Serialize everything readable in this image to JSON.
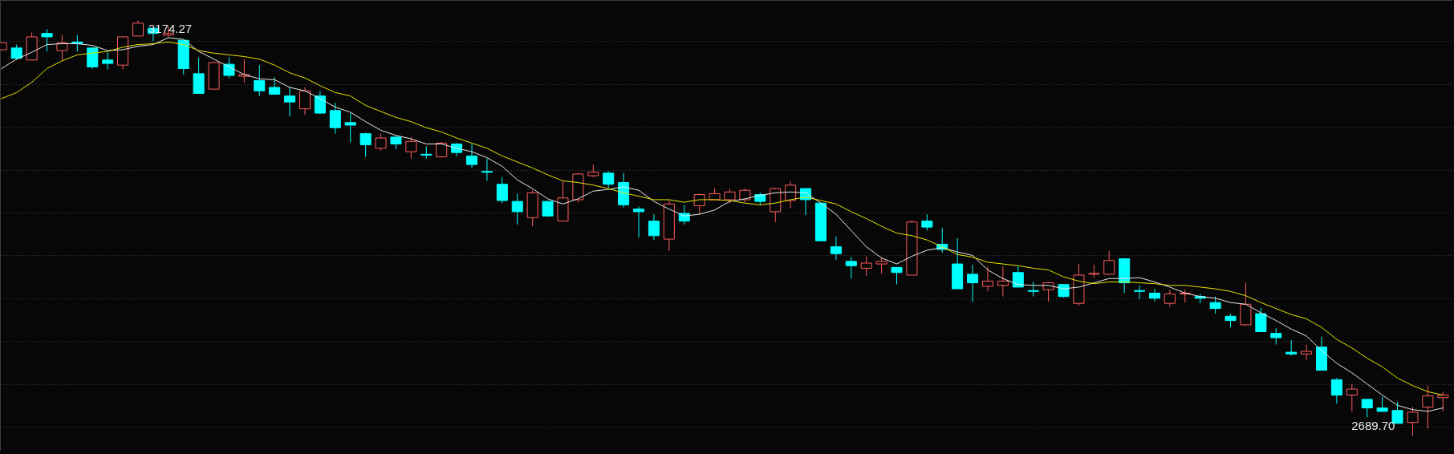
{
  "chart_data": {
    "type": "candlestick",
    "categories": [
      null,
      null,
      null,
      null,
      null,
      null,
      null,
      null,
      null,
      null,
      null,
      null,
      null,
      null,
      null,
      null,
      null,
      null,
      null,
      null,
      null,
      null,
      null,
      null,
      null,
      null,
      null,
      null,
      null,
      null,
      null,
      null,
      null,
      null,
      null,
      null,
      null,
      null,
      null,
      null,
      null,
      null,
      null,
      null,
      null,
      null,
      null,
      null,
      null,
      null,
      null,
      null,
      null,
      null,
      null,
      null,
      null,
      null,
      null,
      null,
      null,
      null,
      null,
      null,
      null,
      null,
      null,
      null,
      null,
      null,
      null,
      null,
      null,
      null,
      null,
      null,
      null,
      null,
      null,
      null,
      null,
      null,
      null,
      null,
      null,
      null,
      null,
      null,
      null,
      null,
      null,
      null,
      null,
      null,
      null,
      null
    ],
    "ohlc": [
      [
        3140,
        3148,
        3140,
        3148
      ],
      [
        3142,
        3146,
        3128,
        3130
      ],
      [
        3128,
        3160,
        3128,
        3155
      ],
      [
        3159,
        3164,
        3138,
        3155
      ],
      [
        3139,
        3157,
        3127,
        3148
      ],
      [
        3149,
        3157,
        3138,
        3147
      ],
      [
        3142,
        3143,
        3118,
        3120
      ],
      [
        3128,
        3137,
        3117,
        3124
      ],
      [
        3122,
        3155,
        3117,
        3155
      ],
      [
        3156,
        3174.27,
        3156,
        3171
      ],
      [
        3165,
        3165,
        3150,
        3159
      ],
      [
        3157,
        3167,
        3155,
        3159
      ],
      [
        3151,
        3151,
        3111,
        3118
      ],
      [
        3112,
        3131,
        3089,
        3089
      ],
      [
        3094,
        3126,
        3094,
        3125
      ],
      [
        3123,
        3131,
        3107,
        3110
      ],
      [
        3109,
        3129,
        3102,
        3111
      ],
      [
        3104,
        3122,
        3086,
        3092
      ],
      [
        3096,
        3108,
        3088,
        3088
      ],
      [
        3086,
        3097,
        3062,
        3079
      ],
      [
        3071,
        3096,
        3064,
        3092
      ],
      [
        3086,
        3092,
        3065,
        3066
      ],
      [
        3069,
        3078,
        3042,
        3049
      ],
      [
        3055,
        3066,
        3032,
        3052
      ],
      [
        3042,
        3043,
        3015,
        3029
      ],
      [
        3025,
        3042,
        3022,
        3037
      ],
      [
        3038,
        3040,
        3024,
        3030
      ],
      [
        3021,
        3038,
        3013,
        3033
      ],
      [
        3018,
        3027,
        3013,
        3017
      ],
      [
        3015,
        3032,
        3014,
        3031
      ],
      [
        3030,
        3031,
        3016,
        3020
      ],
      [
        3016,
        3030,
        3002,
        3006
      ],
      [
        2998,
        3013,
        2987,
        2997
      ],
      [
        2983,
        2991,
        2961,
        2964
      ],
      [
        2963,
        2972,
        2936,
        2951
      ],
      [
        2944,
        2976,
        2934,
        2973
      ],
      [
        2963,
        2964,
        2945,
        2946
      ],
      [
        2940,
        2987,
        2940,
        2967
      ],
      [
        2965,
        2996,
        2962,
        2995
      ],
      [
        2993,
        3006,
        2991,
        2997
      ],
      [
        2996,
        2998,
        2979,
        2983
      ],
      [
        2985,
        2996,
        2956,
        2959
      ],
      [
        2954,
        2957,
        2921,
        2951
      ],
      [
        2940,
        2948,
        2918,
        2923
      ],
      [
        2919,
        2964,
        2905,
        2960
      ],
      [
        2949,
        2959,
        2936,
        2940
      ],
      [
        2958,
        2972,
        2948,
        2971
      ],
      [
        2965,
        2978,
        2965,
        2972
      ],
      [
        2965,
        2978,
        2961,
        2974
      ],
      [
        2965,
        2978,
        2962,
        2976
      ],
      [
        2971,
        2973,
        2959,
        2963
      ],
      [
        2951,
        2979,
        2939,
        2978
      ],
      [
        2964,
        2986,
        2955,
        2982
      ],
      [
        2978,
        2978,
        2947,
        2965
      ],
      [
        2961,
        2961,
        2917,
        2917
      ],
      [
        2910,
        2922,
        2895,
        2902
      ],
      [
        2893,
        2898,
        2873,
        2888
      ],
      [
        2885,
        2899,
        2876,
        2891
      ],
      [
        2890,
        2898,
        2879,
        2893
      ],
      [
        2886,
        2886,
        2866,
        2880
      ],
      [
        2877,
        2941,
        2877,
        2939
      ],
      [
        2940,
        2948,
        2929,
        2933
      ],
      [
        2913,
        2932,
        2903,
        2907
      ],
      [
        2890,
        2920,
        2861,
        2861
      ],
      [
        2878,
        2889,
        2846,
        2868
      ],
      [
        2864,
        2887,
        2858,
        2870
      ],
      [
        2865,
        2887,
        2852,
        2870
      ],
      [
        2880,
        2887,
        2863,
        2863
      ],
      [
        2859,
        2869,
        2852,
        2858
      ],
      [
        2860,
        2868,
        2846,
        2868
      ],
      [
        2866,
        2866,
        2851,
        2852
      ],
      [
        2844,
        2890,
        2841,
        2877
      ],
      [
        2878,
        2889,
        2874,
        2879
      ],
      [
        2878,
        2905,
        2878,
        2894
      ],
      [
        2896,
        2897,
        2856,
        2868
      ],
      [
        2859,
        2865,
        2849,
        2858
      ],
      [
        2856,
        2861,
        2846,
        2850
      ],
      [
        2844,
        2860,
        2840,
        2855
      ],
      [
        2855,
        2860,
        2845,
        2856
      ],
      [
        2852,
        2855,
        2844,
        2850
      ],
      [
        2845,
        2852,
        2832,
        2838
      ],
      [
        2829,
        2832,
        2816,
        2824
      ],
      [
        2819,
        2868,
        2818,
        2843
      ],
      [
        2832,
        2839,
        2811,
        2811
      ],
      [
        2809,
        2815,
        2796,
        2804
      ],
      [
        2787,
        2801,
        2783,
        2785
      ],
      [
        2785,
        2796,
        2778,
        2788
      ],
      [
        2793,
        2805,
        2766,
        2766
      ],
      [
        2755,
        2757,
        2727,
        2737
      ],
      [
        2737,
        2750,
        2718,
        2744
      ],
      [
        2732,
        2732,
        2711,
        2722
      ],
      [
        2722,
        2735,
        2717,
        2718
      ],
      [
        2719,
        2729,
        2704,
        2704
      ],
      [
        2705,
        2723,
        2689.7,
        2717
      ],
      [
        2723,
        2748,
        2698,
        2736
      ],
      [
        2734,
        2741,
        2718,
        2737
      ]
    ],
    "colors": [
      "#ff5c5c",
      "#00ffff",
      "#ff5c5c",
      "#00ffff",
      "#ff5c5c",
      "#00ffff",
      "#00ffff",
      "#00ffff",
      "#ff5c5c",
      "#ff5c5c",
      "#00ffff",
      "#ff5c5c",
      "#00ffff",
      "#00ffff",
      "#ff5c5c",
      "#00ffff",
      "#ff5c5c",
      "#00ffff",
      "#00ffff",
      "#00ffff",
      "#ff5c5c",
      "#00ffff",
      "#00ffff",
      "#00ffff",
      "#00ffff",
      "#ff5c5c",
      "#00ffff",
      "#ff5c5c",
      "#00ffff",
      "#ff5c5c",
      "#00ffff",
      "#00ffff",
      "#00ffff",
      "#00ffff",
      "#00ffff",
      "#ff5c5c",
      "#00ffff",
      "#ff5c5c",
      "#ff5c5c",
      "#ff5c5c",
      "#00ffff",
      "#00ffff",
      "#00ffff",
      "#00ffff",
      "#ff5c5c",
      "#00ffff",
      "#ff5c5c",
      "#ff5c5c",
      "#ff5c5c",
      "#ff5c5c",
      "#00ffff",
      "#ff5c5c",
      "#ff5c5c",
      "#00ffff",
      "#00ffff",
      "#00ffff",
      "#00ffff",
      "#ff5c5c",
      "#ff5c5c",
      "#00ffff",
      "#ff5c5c",
      "#00ffff",
      "#00ffff",
      "#00ffff",
      "#00ffff",
      "#ff5c5c",
      "#ff5c5c",
      "#00ffff",
      "#00ffff",
      "#ff5c5c",
      "#00ffff",
      "#ff5c5c",
      "#ff5c5c",
      "#ff5c5c",
      "#00ffff",
      "#00ffff",
      "#00ffff",
      "#ff5c5c",
      "#ff5c5c",
      "#00ffff",
      "#00ffff",
      "#00ffff",
      "#ff5c5c",
      "#00ffff",
      "#00ffff",
      "#00ffff",
      "#ff5c5c",
      "#00ffff",
      "#00ffff",
      "#ff5c5c",
      "#00ffff",
      "#00ffff",
      "#00ffff",
      "#ff5c5c",
      "#ff5c5c",
      "#ff5c5c"
    ],
    "series": [
      {
        "type": "line",
        "color": "#e8e8e8",
        "values": [
          3118,
          3129,
          3137,
          3146,
          3147,
          3147,
          3145,
          3139,
          3140,
          3144,
          3146,
          3154,
          3152,
          3138,
          3129,
          3120,
          3111,
          3106,
          3105,
          3096,
          3092,
          3083,
          3073,
          3067,
          3056,
          3046,
          3040,
          3036,
          3030,
          3030,
          3025,
          3021,
          3014,
          3004,
          2988,
          2978,
          2966,
          2960,
          2966,
          2975,
          2977,
          2980,
          2976,
          2963,
          2954,
          2946,
          2948,
          2953,
          2963,
          2966,
          2970,
          2973,
          2974,
          2973,
          2961,
          2948,
          2929,
          2910,
          2897,
          2890,
          2899,
          2906,
          2909,
          2904,
          2900,
          2883,
          2873,
          2866,
          2865,
          2865,
          2861,
          2863,
          2868,
          2873,
          2873,
          2874,
          2869,
          2863,
          2856,
          2852,
          2850,
          2845,
          2843,
          2833,
          2824,
          2814,
          2806,
          2789,
          2774,
          2763,
          2750,
          2737,
          2725,
          2720,
          2718,
          2722
        ]
      },
      {
        "type": "line",
        "color": "#e6e600",
        "values": [
          3083,
          3090,
          3102,
          3118,
          3127,
          3134,
          3136,
          3138,
          3143,
          3146,
          3147,
          3149,
          3146,
          3139,
          3136,
          3134,
          3132,
          3129,
          3122,
          3113,
          3107,
          3098,
          3090,
          3086,
          3075,
          3068,
          3061,
          3056,
          3049,
          3044,
          3037,
          3031,
          3025,
          3016,
          3009,
          3002,
          2994,
          2987,
          2985,
          2982,
          2978,
          2973,
          2969,
          2965,
          2965,
          2962,
          2965,
          2965,
          2964,
          2961,
          2959,
          2961,
          2965,
          2968,
          2964,
          2960,
          2951,
          2943,
          2934,
          2926,
          2923,
          2918,
          2910,
          2901,
          2898,
          2892,
          2890,
          2888,
          2885,
          2883,
          2875,
          2870,
          2867,
          2869,
          2869,
          2868,
          2867,
          2865,
          2865,
          2863,
          2861,
          2858,
          2853,
          2845,
          2838,
          2831,
          2826,
          2816,
          2802,
          2792,
          2780,
          2770,
          2757,
          2748,
          2741,
          2737
        ]
      }
    ],
    "ylim": [
      2672,
      3198
    ],
    "yticks": [
      {
        "value": 2700,
        "label": null
      },
      {
        "value": 2750,
        "label": null
      },
      {
        "value": 2800,
        "label": null
      },
      {
        "value": 2850,
        "label": null
      },
      {
        "value": 2900,
        "label": null
      },
      {
        "value": 2950,
        "label": null
      },
      {
        "value": 3000,
        "label": null
      },
      {
        "value": 3050,
        "label": null
      },
      {
        "value": 3100,
        "label": null
      },
      {
        "value": 3150,
        "label": null
      }
    ],
    "grid": true,
    "tick_labels": false,
    "annotations": [
      "3174.27",
      "2689.70"
    ]
  }
}
